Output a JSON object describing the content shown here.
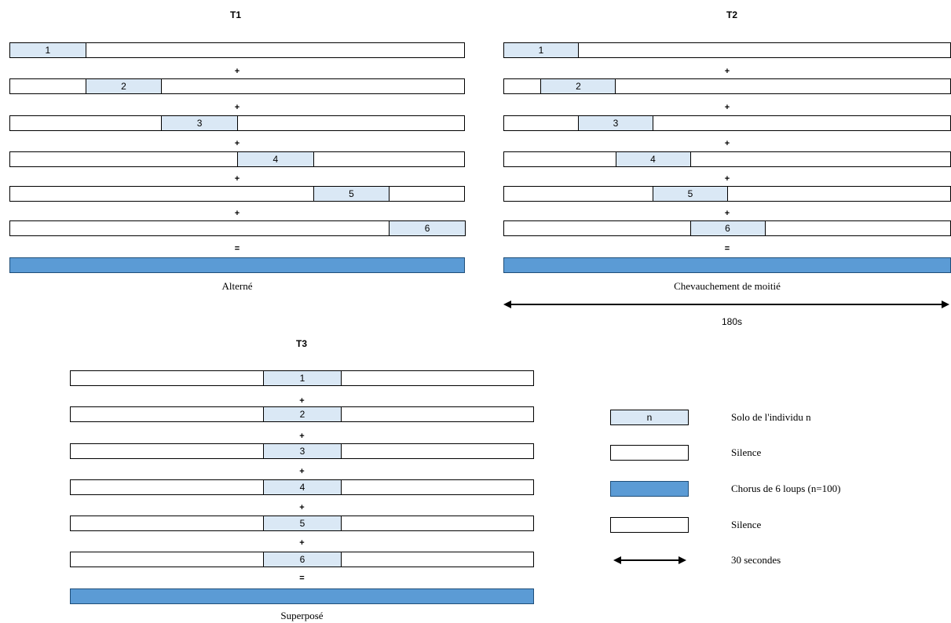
{
  "panels": [
    {
      "title": "T1",
      "caption": "Alterné",
      "solo_labels": [
        "1",
        "2",
        "3",
        "4",
        "5",
        "6"
      ],
      "solo_start_fraction": [
        0.0,
        0.1667,
        0.3333,
        0.5,
        0.6667,
        0.8333
      ],
      "solo_length_fraction": 0.1667,
      "operators": [
        "+",
        "+",
        "+",
        "+",
        "+",
        "="
      ]
    },
    {
      "title": "T2",
      "caption": "Chevauchement de moitié",
      "solo_labels": [
        "1",
        "2",
        "3",
        "4",
        "5",
        "6"
      ],
      "solo_start_fraction": [
        0.0,
        0.0833,
        0.1667,
        0.25,
        0.3333,
        0.4167
      ],
      "solo_length_fraction": 0.1667,
      "operators": [
        "+",
        "+",
        "+",
        "+",
        "+",
        "="
      ],
      "duration_label": "180s"
    },
    {
      "title": "T3",
      "caption": "Superposé",
      "solo_labels": [
        "1",
        "2",
        "3",
        "4",
        "5",
        "6"
      ],
      "solo_start_fraction": [
        0.4167,
        0.4167,
        0.4167,
        0.4167,
        0.4167,
        0.4167
      ],
      "solo_length_fraction": 0.1667,
      "operators": [
        "+",
        "+",
        "+",
        "+",
        "+",
        "="
      ]
    }
  ],
  "legend": {
    "items": [
      {
        "swatch": "solo",
        "swatch_label": "n",
        "text": "Solo de l'individu n"
      },
      {
        "swatch": "silence",
        "swatch_label": "",
        "text": "Silence"
      },
      {
        "swatch": "chorus",
        "swatch_label": "",
        "text": "Chorus de 6 loups (n=100)"
      },
      {
        "swatch": "silence",
        "swatch_label": "",
        "text": "Silence"
      },
      {
        "swatch": "arrow",
        "swatch_label": "",
        "text": "30 secondes"
      }
    ]
  },
  "colors": {
    "solo_fill": "#dae8f5",
    "chorus_fill": "#5b9bd5",
    "chorus_border": "#1f4e79",
    "silence_fill": "#ffffff"
  }
}
